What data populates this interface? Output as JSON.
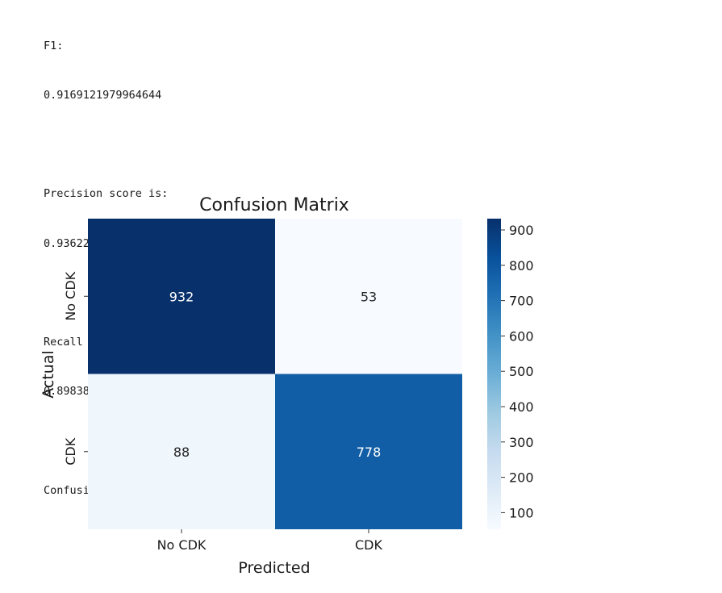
{
  "output": {
    "f1_label": "F1:",
    "f1_value": "0.9169121979964644",
    "precision_label": "Precision score is:",
    "precision_value": "0.9362214199759326",
    "recall_label": "Recall score is:",
    "recall_value": "0.8983833718244804",
    "cm_label": "Confusion Matrix:"
  },
  "chart_data": {
    "type": "heatmap",
    "title": "Confusion Matrix",
    "xlabel": "Predicted",
    "ylabel": "Actual",
    "x_categories": [
      "No CDK",
      "CDK"
    ],
    "y_categories": [
      "No CDK",
      "CDK"
    ],
    "values": [
      [
        932,
        53
      ],
      [
        88,
        778
      ]
    ],
    "colormap": "Blues",
    "colorbar_range": [
      53,
      932
    ],
    "colorbar_ticks": [
      100,
      200,
      300,
      400,
      500,
      600,
      700,
      800,
      900
    ],
    "annotation_colors": {
      "dark_cell": "#ffffff",
      "light_cell": "#262626"
    }
  }
}
